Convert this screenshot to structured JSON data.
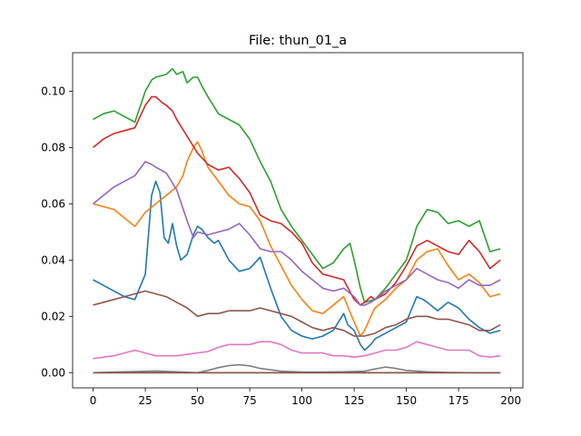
{
  "chart_data": {
    "type": "line",
    "title": "File: thun_01_a",
    "xlabel": "",
    "ylabel": "",
    "xlim": [
      -9.8,
      205.8
    ],
    "ylim": [
      -0.0054,
      0.1137
    ],
    "xticks": [
      0,
      25,
      50,
      75,
      100,
      125,
      150,
      175,
      200
    ],
    "yticks": [
      0.0,
      0.02,
      0.04,
      0.06,
      0.08,
      0.1
    ],
    "ytick_labels": [
      "0.00",
      "0.02",
      "0.04",
      "0.06",
      "0.08",
      "0.10"
    ],
    "grid": false,
    "legend": "none",
    "series": [
      {
        "color": "#1f77b4",
        "x": [
          0,
          5,
          10,
          15,
          20,
          25,
          28,
          30,
          32,
          34,
          36,
          38,
          40,
          42,
          45,
          48,
          50,
          52,
          55,
          58,
          60,
          65,
          70,
          75,
          80,
          85,
          90,
          95,
          100,
          105,
          110,
          115,
          120,
          122,
          125,
          128,
          130,
          133,
          135,
          140,
          145,
          150,
          155,
          158,
          160,
          165,
          170,
          175,
          180,
          185,
          190,
          195
        ],
        "y": [
          0.033,
          0.031,
          0.029,
          0.027,
          0.026,
          0.035,
          0.063,
          0.068,
          0.064,
          0.048,
          0.046,
          0.053,
          0.045,
          0.04,
          0.042,
          0.049,
          0.052,
          0.051,
          0.048,
          0.046,
          0.047,
          0.04,
          0.036,
          0.037,
          0.041,
          0.03,
          0.02,
          0.015,
          0.013,
          0.012,
          0.013,
          0.015,
          0.021,
          0.017,
          0.015,
          0.01,
          0.008,
          0.01,
          0.012,
          0.014,
          0.016,
          0.018,
          0.027,
          0.026,
          0.025,
          0.022,
          0.025,
          0.023,
          0.019,
          0.016,
          0.014,
          0.015
        ]
      },
      {
        "color": "#ff7f0e",
        "x": [
          0,
          5,
          10,
          15,
          20,
          25,
          30,
          35,
          40,
          43,
          45,
          48,
          50,
          52,
          55,
          60,
          65,
          70,
          75,
          80,
          85,
          90,
          95,
          100,
          105,
          110,
          115,
          120,
          125,
          128,
          130,
          133,
          135,
          140,
          145,
          150,
          155,
          160,
          165,
          170,
          175,
          180,
          185,
          190,
          195
        ],
        "y": [
          0.06,
          0.059,
          0.058,
          0.055,
          0.052,
          0.057,
          0.06,
          0.063,
          0.066,
          0.07,
          0.075,
          0.08,
          0.082,
          0.079,
          0.073,
          0.068,
          0.063,
          0.06,
          0.059,
          0.054,
          0.045,
          0.038,
          0.031,
          0.026,
          0.022,
          0.021,
          0.024,
          0.027,
          0.018,
          0.013,
          0.015,
          0.02,
          0.023,
          0.026,
          0.03,
          0.033,
          0.04,
          0.043,
          0.044,
          0.038,
          0.033,
          0.035,
          0.032,
          0.027,
          0.028
        ]
      },
      {
        "color": "#2ca02c",
        "x": [
          0,
          5,
          10,
          15,
          20,
          25,
          28,
          30,
          35,
          38,
          40,
          43,
          45,
          48,
          50,
          52,
          55,
          60,
          65,
          70,
          75,
          80,
          85,
          90,
          95,
          100,
          105,
          110,
          115,
          120,
          123,
          125,
          128,
          130,
          135,
          140,
          145,
          150,
          153,
          155,
          160,
          165,
          170,
          175,
          180,
          185,
          190,
          195
        ],
        "y": [
          0.09,
          0.092,
          0.093,
          0.091,
          0.089,
          0.1,
          0.104,
          0.105,
          0.106,
          0.108,
          0.106,
          0.107,
          0.103,
          0.105,
          0.105,
          0.102,
          0.098,
          0.092,
          0.09,
          0.088,
          0.083,
          0.075,
          0.068,
          0.058,
          0.052,
          0.047,
          0.042,
          0.037,
          0.039,
          0.044,
          0.046,
          0.04,
          0.03,
          0.025,
          0.026,
          0.03,
          0.035,
          0.04,
          0.047,
          0.052,
          0.058,
          0.057,
          0.053,
          0.054,
          0.052,
          0.054,
          0.043,
          0.044
        ]
      },
      {
        "color": "#d62728",
        "x": [
          0,
          5,
          10,
          15,
          20,
          25,
          28,
          30,
          33,
          35,
          38,
          40,
          45,
          50,
          55,
          60,
          65,
          70,
          75,
          80,
          85,
          90,
          95,
          100,
          105,
          110,
          115,
          120,
          125,
          128,
          130,
          133,
          135,
          140,
          145,
          150,
          155,
          160,
          165,
          170,
          175,
          180,
          185,
          190,
          195
        ],
        "y": [
          0.08,
          0.083,
          0.085,
          0.086,
          0.087,
          0.095,
          0.098,
          0.098,
          0.096,
          0.095,
          0.093,
          0.09,
          0.084,
          0.078,
          0.074,
          0.072,
          0.073,
          0.069,
          0.064,
          0.056,
          0.054,
          0.053,
          0.05,
          0.046,
          0.039,
          0.035,
          0.034,
          0.033,
          0.026,
          0.024,
          0.025,
          0.027,
          0.026,
          0.028,
          0.032,
          0.038,
          0.045,
          0.047,
          0.045,
          0.043,
          0.042,
          0.047,
          0.043,
          0.037,
          0.04
        ]
      },
      {
        "color": "#9467bd",
        "x": [
          0,
          5,
          10,
          15,
          20,
          25,
          28,
          30,
          35,
          40,
          45,
          48,
          50,
          55,
          60,
          65,
          70,
          75,
          80,
          85,
          90,
          95,
          100,
          105,
          110,
          115,
          120,
          125,
          128,
          130,
          133,
          135,
          140,
          145,
          150,
          155,
          160,
          165,
          170,
          175,
          180,
          185,
          190,
          195
        ],
        "y": [
          0.06,
          0.063,
          0.066,
          0.068,
          0.07,
          0.075,
          0.074,
          0.073,
          0.071,
          0.065,
          0.054,
          0.048,
          0.05,
          0.049,
          0.05,
          0.051,
          0.053,
          0.049,
          0.044,
          0.043,
          0.043,
          0.04,
          0.036,
          0.033,
          0.03,
          0.029,
          0.03,
          0.027,
          0.024,
          0.024,
          0.025,
          0.026,
          0.029,
          0.031,
          0.033,
          0.037,
          0.035,
          0.033,
          0.032,
          0.03,
          0.033,
          0.031,
          0.031,
          0.033
        ]
      },
      {
        "color": "#8c564b",
        "x": [
          0,
          5,
          10,
          15,
          20,
          25,
          30,
          35,
          40,
          45,
          50,
          55,
          60,
          65,
          70,
          75,
          80,
          85,
          90,
          95,
          100,
          105,
          110,
          115,
          120,
          125,
          130,
          135,
          140,
          145,
          150,
          155,
          160,
          165,
          170,
          175,
          180,
          185,
          190,
          195
        ],
        "y": [
          0.024,
          0.025,
          0.026,
          0.027,
          0.028,
          0.029,
          0.028,
          0.027,
          0.025,
          0.023,
          0.02,
          0.021,
          0.021,
          0.022,
          0.022,
          0.022,
          0.023,
          0.022,
          0.021,
          0.02,
          0.018,
          0.016,
          0.015,
          0.016,
          0.015,
          0.013,
          0.013,
          0.014,
          0.016,
          0.017,
          0.019,
          0.02,
          0.02,
          0.019,
          0.019,
          0.018,
          0.017,
          0.015,
          0.015,
          0.017
        ]
      },
      {
        "color": "#e377c2",
        "x": [
          0,
          5,
          10,
          15,
          20,
          25,
          30,
          35,
          40,
          45,
          50,
          55,
          60,
          65,
          70,
          75,
          80,
          85,
          90,
          95,
          100,
          105,
          110,
          115,
          120,
          125,
          130,
          135,
          140,
          145,
          150,
          155,
          160,
          165,
          170,
          175,
          180,
          185,
          190,
          195
        ],
        "y": [
          0.005,
          0.0055,
          0.006,
          0.007,
          0.008,
          0.007,
          0.006,
          0.006,
          0.006,
          0.0065,
          0.007,
          0.0075,
          0.009,
          0.01,
          0.01,
          0.01,
          0.011,
          0.011,
          0.01,
          0.008,
          0.007,
          0.007,
          0.007,
          0.006,
          0.006,
          0.0055,
          0.006,
          0.007,
          0.008,
          0.008,
          0.009,
          0.011,
          0.01,
          0.009,
          0.008,
          0.008,
          0.008,
          0.006,
          0.0055,
          0.006
        ]
      },
      {
        "color": "#7f7f7f",
        "x": [
          0,
          10,
          20,
          30,
          40,
          50,
          55,
          60,
          65,
          70,
          75,
          80,
          90,
          100,
          110,
          120,
          130,
          135,
          140,
          145,
          150,
          160,
          170,
          180,
          190,
          195
        ],
        "y": [
          0.0,
          0.0002,
          0.0004,
          0.0006,
          0.0003,
          0.0,
          0.0008,
          0.0018,
          0.0025,
          0.0028,
          0.0024,
          0.0015,
          0.0005,
          0.0002,
          0.0002,
          0.0003,
          0.0005,
          0.0013,
          0.002,
          0.0015,
          0.0008,
          0.0003,
          0.0001,
          0.0,
          0.0,
          0.0
        ]
      },
      {
        "color": "#bcbd22",
        "x": [
          0,
          50,
          100,
          150,
          195
        ],
        "y": [
          0.0,
          0.0,
          0.0,
          0.0,
          0.0
        ]
      },
      {
        "color": "#17becf",
        "x": [
          0,
          50,
          100,
          150,
          195
        ],
        "y": [
          0.0,
          0.0,
          0.0,
          0.0,
          0.0
        ]
      },
      {
        "color": "#8c564b",
        "x": [
          0,
          50,
          100,
          150,
          195
        ],
        "y": [
          0.0,
          0.0,
          0.0,
          0.0,
          0.0
        ]
      }
    ]
  }
}
